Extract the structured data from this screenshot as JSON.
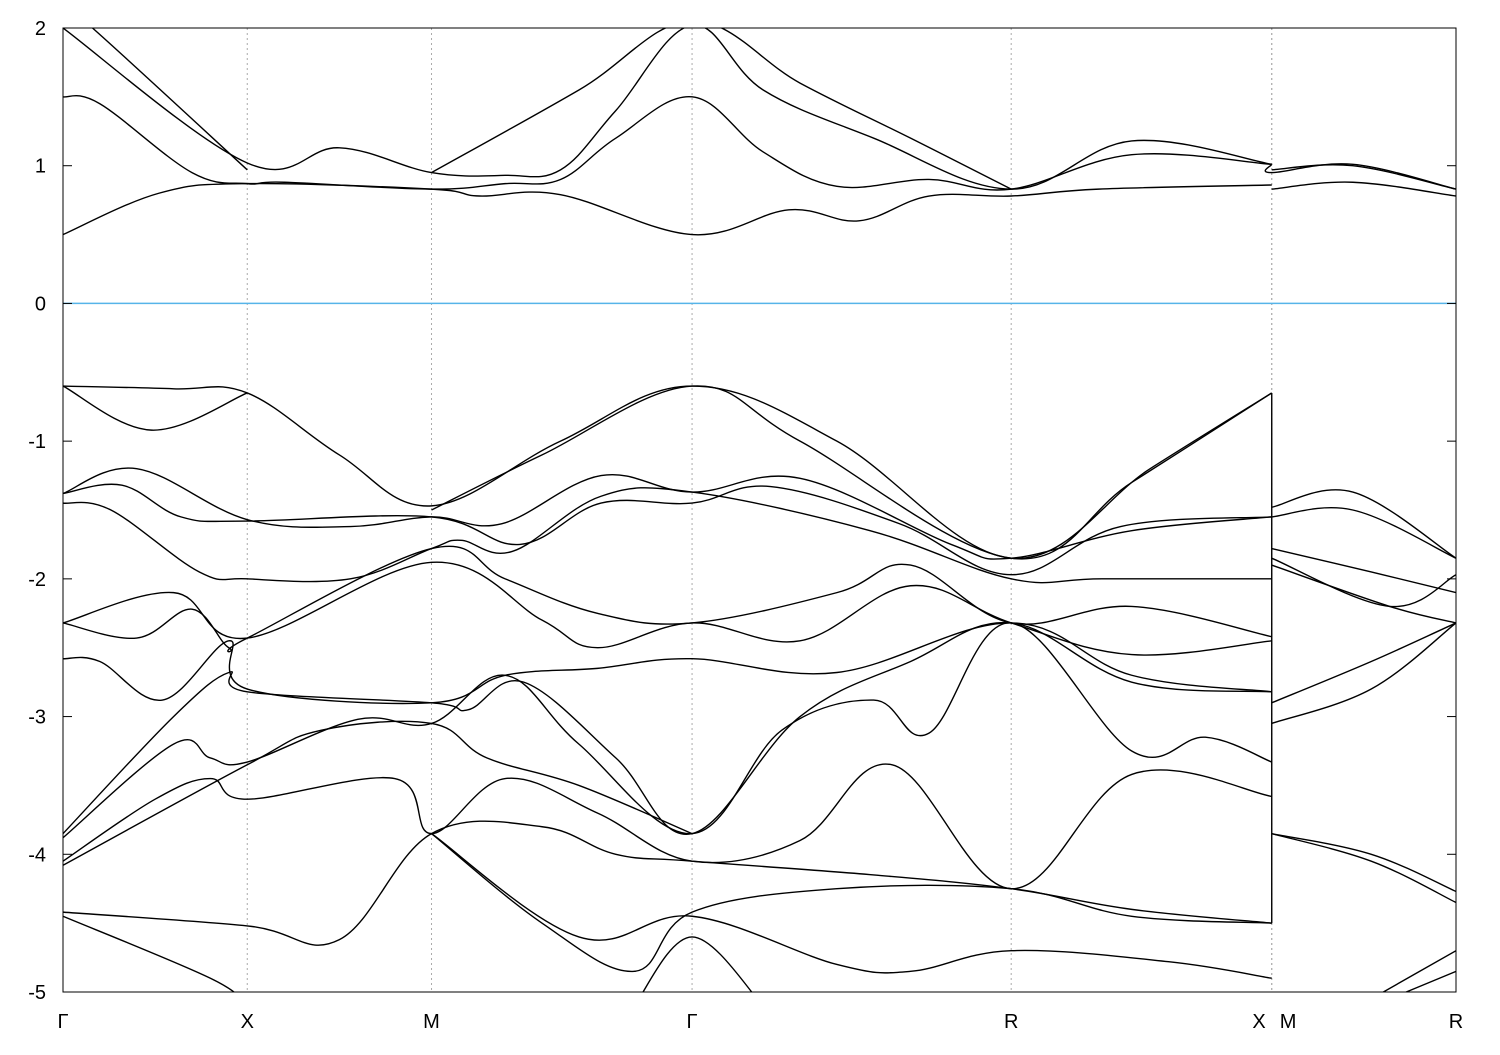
{
  "chart_data": {
    "type": "line",
    "title": "",
    "xlabel": "",
    "ylabel": "",
    "xlim": [
      0,
      3.78
    ],
    "ylim": [
      -5,
      2
    ],
    "yticks": [
      -5,
      -4,
      -3,
      -2,
      -1,
      0,
      1,
      2
    ],
    "ytick_labels": [
      "-5",
      "-4",
      "-3",
      "-2",
      "-1",
      "0",
      "1",
      "2"
    ],
    "kpoints": [
      {
        "label": "Γ",
        "k": 0
      },
      {
        "label": "X",
        "k": 0.5
      },
      {
        "label": "M",
        "k": 1.0
      },
      {
        "label": "Γ",
        "k": 1.707
      },
      {
        "label": "R",
        "k": 2.573
      },
      {
        "label": "X",
        "k": 3.28
      },
      {
        "label": "M",
        "k": 3.28
      },
      {
        "label": "R",
        "k": 3.78
      }
    ],
    "grid": "dotted vertical lines at high-symmetry points",
    "legend": "none",
    "fermi_level": 0,
    "colors": {
      "bands": "#000000",
      "fermi": "#56b4e9",
      "grid": "#aaaaaa"
    },
    "series": [
      {
        "points": [
          [
            0,
            0.5
          ],
          [
            0.26,
            0.8
          ],
          [
            0.5,
            0.87
          ],
          [
            1.0,
            0.83
          ],
          [
            1.13,
            0.78
          ],
          [
            1.35,
            0.79
          ],
          [
            1.707,
            0.5
          ],
          [
            1.97,
            0.68
          ],
          [
            2.16,
            0.6
          ],
          [
            2.35,
            0.78
          ],
          [
            2.573,
            0.78
          ],
          [
            2.81,
            0.83
          ],
          [
            3.28,
            0.86
          ]
        ]
      },
      {
        "points": [
          [
            0,
            1.5
          ],
          [
            0.1,
            1.45
          ],
          [
            0.35,
            0.95
          ],
          [
            0.5,
            0.87
          ],
          [
            0.6,
            0.88
          ],
          [
            1.0,
            0.83
          ],
          [
            1.2,
            0.87
          ],
          [
            1.35,
            0.9
          ],
          [
            1.5,
            1.2
          ],
          [
            1.707,
            1.5
          ],
          [
            1.9,
            1.1
          ],
          [
            2.1,
            0.85
          ],
          [
            2.35,
            0.9
          ],
          [
            2.573,
            0.83
          ],
          [
            2.9,
            1.08
          ],
          [
            3.28,
            1.01
          ]
        ]
      },
      {
        "points": [
          [
            0,
            2.0
          ],
          [
            0.5,
            1.02
          ],
          [
            0.75,
            1.13
          ],
          [
            1.0,
            0.95
          ],
          [
            1.2,
            0.93
          ],
          [
            1.35,
            0.97
          ],
          [
            1.5,
            1.4
          ],
          [
            1.707,
            2.02
          ],
          [
            1.9,
            1.55
          ],
          [
            2.2,
            1.2
          ],
          [
            2.573,
            0.83
          ],
          [
            2.9,
            1.18
          ],
          [
            3.28,
            1.01
          ]
        ]
      },
      {
        "points": [
          [
            0,
            2.15
          ],
          [
            0.08,
            2.0
          ],
          [
            0.5,
            0.97
          ]
        ]
      },
      {
        "points": [
          [
            1.0,
            0.95
          ],
          [
            1.4,
            1.55
          ],
          [
            1.707,
            2.05
          ],
          [
            2.0,
            1.6
          ],
          [
            2.3,
            1.2
          ],
          [
            2.573,
            0.83
          ]
        ]
      },
      {
        "points": [
          [
            3.28,
            1.01
          ],
          [
            3.28,
            0.95
          ],
          [
            3.5,
            1.01
          ],
          [
            3.78,
            0.83
          ]
        ]
      },
      {
        "points": [
          [
            3.28,
            0.83
          ],
          [
            3.5,
            0.88
          ],
          [
            3.78,
            0.78
          ]
        ]
      },
      {
        "points": [
          [
            3.28,
            0.97
          ],
          [
            3.5,
            1.0
          ],
          [
            3.78,
            0.83
          ]
        ]
      },
      {
        "points": [
          [
            0,
            -0.6
          ],
          [
            0.3,
            -0.62
          ],
          [
            0.5,
            -0.65
          ],
          [
            0.75,
            -1.1
          ],
          [
            1.0,
            -1.47
          ],
          [
            1.35,
            -1.0
          ],
          [
            1.707,
            -0.6
          ],
          [
            2.1,
            -1.0
          ],
          [
            2.573,
            -1.85
          ],
          [
            2.95,
            -1.2
          ],
          [
            3.28,
            -0.65
          ]
        ]
      },
      {
        "points": [
          [
            0,
            -0.6
          ],
          [
            0.24,
            -0.92
          ],
          [
            0.5,
            -0.65
          ]
        ]
      },
      {
        "points": [
          [
            1.0,
            -1.5
          ],
          [
            1.3,
            -1.1
          ],
          [
            1.707,
            -0.6
          ],
          [
            2.0,
            -1.0
          ],
          [
            2.573,
            -1.85
          ],
          [
            2.9,
            -1.3
          ],
          [
            3.28,
            -0.65
          ]
        ]
      },
      {
        "points": [
          [
            0,
            -1.38
          ],
          [
            0.2,
            -1.2
          ],
          [
            0.5,
            -1.57
          ],
          [
            0.78,
            -1.62
          ],
          [
            1.0,
            -1.55
          ],
          [
            1.19,
            -1.6
          ],
          [
            1.46,
            -1.25
          ],
          [
            1.707,
            -1.37
          ],
          [
            2.0,
            -1.27
          ],
          [
            2.41,
            -1.75
          ],
          [
            2.573,
            -1.85
          ],
          [
            2.9,
            -1.65
          ],
          [
            3.28,
            -1.55
          ]
        ]
      },
      {
        "points": [
          [
            0,
            -1.38
          ],
          [
            0.16,
            -1.32
          ],
          [
            0.32,
            -1.55
          ],
          [
            0.5,
            -1.58
          ],
          [
            1.0,
            -1.55
          ],
          [
            1.24,
            -1.75
          ],
          [
            1.46,
            -1.45
          ],
          [
            1.707,
            -1.45
          ],
          [
            1.92,
            -1.33
          ],
          [
            2.27,
            -1.6
          ],
          [
            2.573,
            -1.97
          ],
          [
            2.87,
            -1.62
          ],
          [
            3.28,
            -1.55
          ]
        ]
      },
      {
        "points": [
          [
            0,
            -1.45
          ],
          [
            0.13,
            -1.5
          ],
          [
            0.37,
            -1.95
          ],
          [
            0.5,
            -2.0
          ],
          [
            0.78,
            -2.0
          ],
          [
            1.0,
            -1.78
          ],
          [
            1.08,
            -1.72
          ],
          [
            1.22,
            -1.8
          ],
          [
            1.46,
            -1.4
          ],
          [
            1.707,
            -1.37
          ],
          [
            2.19,
            -1.65
          ],
          [
            2.573,
            -2.0
          ],
          [
            2.82,
            -2.0
          ],
          [
            3.28,
            -2.0
          ]
        ]
      },
      {
        "points": [
          [
            0,
            -2.32
          ],
          [
            0.3,
            -2.1
          ],
          [
            0.5,
            -2.43
          ],
          [
            1.0,
            -1.88
          ],
          [
            1.3,
            -2.3
          ],
          [
            1.45,
            -2.5
          ],
          [
            1.707,
            -2.32
          ],
          [
            2.0,
            -2.45
          ],
          [
            2.3,
            -2.05
          ],
          [
            2.573,
            -2.32
          ],
          [
            2.9,
            -2.55
          ],
          [
            3.28,
            -2.45
          ]
        ]
      },
      {
        "points": [
          [
            0,
            -2.32
          ],
          [
            0.2,
            -2.43
          ],
          [
            0.35,
            -2.22
          ],
          [
            0.45,
            -2.5
          ],
          [
            0.5,
            -2.43
          ],
          [
            1.0,
            -1.78
          ],
          [
            1.2,
            -2.0
          ],
          [
            1.45,
            -2.25
          ],
          [
            1.707,
            -2.32
          ],
          [
            2.1,
            -2.1
          ],
          [
            2.3,
            -1.9
          ],
          [
            2.573,
            -2.32
          ],
          [
            2.9,
            -2.2
          ],
          [
            3.28,
            -2.42
          ]
        ]
      },
      {
        "points": [
          [
            0,
            -2.58
          ],
          [
            0.1,
            -2.6
          ],
          [
            0.27,
            -2.88
          ],
          [
            0.45,
            -2.45
          ],
          [
            0.5,
            -2.8
          ],
          [
            1.0,
            -2.9
          ],
          [
            1.2,
            -2.7
          ],
          [
            1.45,
            -2.65
          ],
          [
            1.707,
            -2.58
          ],
          [
            2.1,
            -2.68
          ],
          [
            2.573,
            -2.32
          ],
          [
            2.9,
            -2.7
          ],
          [
            3.28,
            -2.82
          ]
        ]
      },
      {
        "points": [
          [
            0,
            -3.85
          ],
          [
            0.3,
            -3.0
          ],
          [
            0.45,
            -2.68
          ],
          [
            0.5,
            -2.82
          ],
          [
            1.0,
            -2.9
          ],
          [
            1.1,
            -2.95
          ],
          [
            1.25,
            -2.75
          ],
          [
            1.5,
            -3.3
          ],
          [
            1.707,
            -3.85
          ],
          [
            2.0,
            -3.0
          ],
          [
            2.3,
            -2.6
          ],
          [
            2.573,
            -2.32
          ],
          [
            2.9,
            -2.75
          ],
          [
            3.28,
            -2.82
          ]
        ]
      },
      {
        "points": [
          [
            0,
            -3.88
          ],
          [
            0.3,
            -3.2
          ],
          [
            0.4,
            -3.3
          ],
          [
            0.5,
            -3.33
          ],
          [
            0.8,
            -3.02
          ],
          [
            1.0,
            -3.05
          ],
          [
            1.2,
            -2.7
          ],
          [
            1.4,
            -3.2
          ],
          [
            1.707,
            -3.85
          ],
          [
            1.95,
            -3.1
          ],
          [
            2.2,
            -2.88
          ],
          [
            2.35,
            -3.12
          ],
          [
            2.573,
            -2.32
          ],
          [
            2.9,
            -3.25
          ],
          [
            3.1,
            -3.15
          ],
          [
            3.28,
            -3.33
          ]
        ]
      },
      {
        "points": [
          [
            0,
            -4.05
          ],
          [
            0.25,
            -3.6
          ],
          [
            0.4,
            -3.45
          ],
          [
            0.5,
            -3.6
          ],
          [
            0.9,
            -3.45
          ],
          [
            1.0,
            -3.85
          ],
          [
            1.2,
            -3.45
          ],
          [
            1.45,
            -3.7
          ],
          [
            1.707,
            -4.05
          ],
          [
            2.0,
            -3.9
          ],
          [
            2.25,
            -3.35
          ],
          [
            2.573,
            -4.25
          ],
          [
            2.9,
            -3.42
          ],
          [
            3.28,
            -3.58
          ]
        ]
      },
      {
        "points": [
          [
            0,
            -4.08
          ],
          [
            0.5,
            -3.35
          ],
          [
            0.7,
            -3.1
          ],
          [
            1.0,
            -3.05
          ],
          [
            1.15,
            -3.3
          ],
          [
            1.4,
            -3.5
          ],
          [
            1.707,
            -3.85
          ]
        ]
      },
      {
        "points": [
          [
            0,
            -4.42
          ],
          [
            0.5,
            -4.52
          ],
          [
            0.75,
            -4.62
          ],
          [
            1.0,
            -3.85
          ],
          [
            1.3,
            -3.8
          ],
          [
            1.5,
            -4.0
          ],
          [
            1.707,
            -4.05
          ],
          [
            2.2,
            -4.15
          ],
          [
            2.573,
            -4.25
          ],
          [
            2.9,
            -4.4
          ],
          [
            3.28,
            -4.5
          ]
        ]
      },
      {
        "points": [
          [
            1.0,
            -3.85
          ],
          [
            1.3,
            -4.5
          ],
          [
            1.55,
            -4.85
          ],
          [
            1.707,
            -4.42
          ],
          [
            2.1,
            -4.25
          ],
          [
            2.573,
            -4.25
          ],
          [
            2.9,
            -4.45
          ],
          [
            3.28,
            -4.5
          ]
        ]
      },
      {
        "points": [
          [
            0,
            -4.45
          ],
          [
            0.4,
            -4.9
          ],
          [
            0.5,
            -5.1
          ]
        ]
      },
      {
        "points": [
          [
            1.0,
            -3.85
          ],
          [
            1.4,
            -4.6
          ],
          [
            1.707,
            -4.45
          ],
          [
            2.1,
            -4.8
          ],
          [
            2.3,
            -4.85
          ],
          [
            2.573,
            -4.7
          ],
          [
            3.0,
            -4.78
          ],
          [
            3.28,
            -4.9
          ]
        ]
      },
      {
        "points": [
          [
            1.55,
            -5.1
          ],
          [
            1.707,
            -4.6
          ],
          [
            1.9,
            -5.1
          ]
        ]
      },
      {
        "points": [
          [
            3.28,
            -0.65
          ],
          [
            3.28,
            -4.5
          ]
        ]
      },
      {
        "points": [
          [
            3.28,
            -1.48
          ],
          [
            3.5,
            -1.37
          ],
          [
            3.78,
            -1.85
          ]
        ]
      },
      {
        "points": [
          [
            3.28,
            -1.55
          ],
          [
            3.5,
            -1.5
          ],
          [
            3.78,
            -1.85
          ]
        ]
      },
      {
        "points": [
          [
            3.28,
            -1.78
          ],
          [
            3.55,
            -1.95
          ],
          [
            3.78,
            -2.1
          ]
        ]
      },
      {
        "points": [
          [
            3.28,
            -1.85
          ],
          [
            3.6,
            -2.2
          ],
          [
            3.78,
            -1.97
          ]
        ]
      },
      {
        "points": [
          [
            3.28,
            -1.9
          ],
          [
            3.6,
            -2.2
          ],
          [
            3.78,
            -2.32
          ]
        ]
      },
      {
        "points": [
          [
            3.28,
            -2.9
          ],
          [
            3.55,
            -2.6
          ],
          [
            3.78,
            -2.32
          ]
        ]
      },
      {
        "points": [
          [
            3.28,
            -3.05
          ],
          [
            3.55,
            -2.8
          ],
          [
            3.78,
            -2.32
          ]
        ]
      },
      {
        "points": [
          [
            3.28,
            -3.85
          ],
          [
            3.55,
            -4.0
          ],
          [
            3.78,
            -4.27
          ]
        ]
      },
      {
        "points": [
          [
            3.28,
            -3.85
          ],
          [
            3.55,
            -4.05
          ],
          [
            3.78,
            -4.35
          ]
        ]
      },
      {
        "points": [
          [
            3.55,
            -5.05
          ],
          [
            3.78,
            -4.7
          ]
        ]
      },
      {
        "points": [
          [
            3.6,
            -5.05
          ],
          [
            3.78,
            -4.85
          ]
        ]
      }
    ]
  }
}
